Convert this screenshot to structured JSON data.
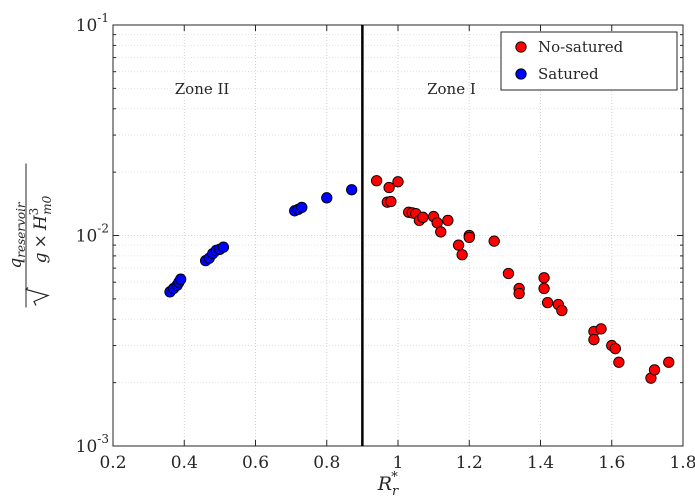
{
  "chart_data": {
    "type": "scatter",
    "title": "",
    "xlabel": "R_r^*",
    "ylabel": "q_reservoir / sqrt(g × H_m0^3)",
    "xlim": [
      0.2,
      1.8
    ],
    "ylim": [
      0.001,
      0.1
    ],
    "y_scale": "log",
    "grid": true,
    "legend_position": "top-right",
    "x_ticks": [
      0.2,
      0.4,
      0.6,
      0.8,
      1.0,
      1.2,
      1.4,
      1.6,
      1.8
    ],
    "x_tick_labels": [
      "0.2",
      "0.4",
      "0.6",
      "0.8",
      "1",
      "1.2",
      "1.4",
      "1.6",
      "1.8"
    ],
    "y_ticks": [
      0.001,
      0.01,
      0.1
    ],
    "y_tick_labels": [
      {
        "base": "10",
        "exp": "-3"
      },
      {
        "base": "10",
        "exp": "-2"
      },
      {
        "base": "10",
        "exp": "-1"
      }
    ],
    "xlabel_parts": {
      "main": "R",
      "sub": "r",
      "sup": "*"
    },
    "ylabel_parts": {
      "numerator_main": "q",
      "numerator_sub": "reservoir",
      "den_g": "g",
      "den_times": "×",
      "den_H": "H",
      "den_sup": "3",
      "den_sub": "m0"
    },
    "threshold_line": {
      "x": 0.9,
      "color": "#000000"
    },
    "annotations": [
      {
        "text": "Zone II",
        "x": 0.45,
        "y": 0.047
      },
      {
        "text": "Zone I",
        "x": 1.15,
        "y": 0.047
      }
    ],
    "series": [
      {
        "name": "No-satured",
        "color": "#ff0000",
        "points": [
          [
            0.94,
            0.0182
          ],
          [
            0.97,
            0.0144
          ],
          [
            0.975,
            0.0169
          ],
          [
            0.98,
            0.0145
          ],
          [
            1.0,
            0.018
          ],
          [
            1.03,
            0.0129
          ],
          [
            1.04,
            0.0128
          ],
          [
            1.05,
            0.0127
          ],
          [
            1.06,
            0.0118
          ],
          [
            1.07,
            0.0122
          ],
          [
            1.1,
            0.0123
          ],
          [
            1.11,
            0.0115
          ],
          [
            1.12,
            0.0104
          ],
          [
            1.14,
            0.0118
          ],
          [
            1.17,
            0.009
          ],
          [
            1.18,
            0.0081
          ],
          [
            1.2,
            0.01
          ],
          [
            1.2,
            0.0098
          ],
          [
            1.27,
            0.0094
          ],
          [
            1.31,
            0.0066
          ],
          [
            1.34,
            0.0056
          ],
          [
            1.34,
            0.0053
          ],
          [
            1.41,
            0.0063
          ],
          [
            1.41,
            0.0056
          ],
          [
            1.42,
            0.0048
          ],
          [
            1.45,
            0.0047
          ],
          [
            1.46,
            0.0044
          ],
          [
            1.55,
            0.0035
          ],
          [
            1.55,
            0.0032
          ],
          [
            1.57,
            0.0036
          ],
          [
            1.6,
            0.003
          ],
          [
            1.61,
            0.0029
          ],
          [
            1.62,
            0.0025
          ],
          [
            1.71,
            0.0021
          ],
          [
            1.72,
            0.0023
          ],
          [
            1.76,
            0.0025
          ]
        ]
      },
      {
        "name": "Satured",
        "color": "#0000ff",
        "points": [
          [
            0.36,
            0.0054
          ],
          [
            0.37,
            0.0056
          ],
          [
            0.38,
            0.0058
          ],
          [
            0.385,
            0.006
          ],
          [
            0.39,
            0.0062
          ],
          [
            0.46,
            0.0076
          ],
          [
            0.47,
            0.0078
          ],
          [
            0.48,
            0.0082
          ],
          [
            0.49,
            0.0085
          ],
          [
            0.5,
            0.0086
          ],
          [
            0.51,
            0.0088
          ],
          [
            0.71,
            0.0131
          ],
          [
            0.72,
            0.0133
          ],
          [
            0.73,
            0.0136
          ],
          [
            0.8,
            0.0151
          ],
          [
            0.87,
            0.0165
          ]
        ]
      }
    ]
  }
}
